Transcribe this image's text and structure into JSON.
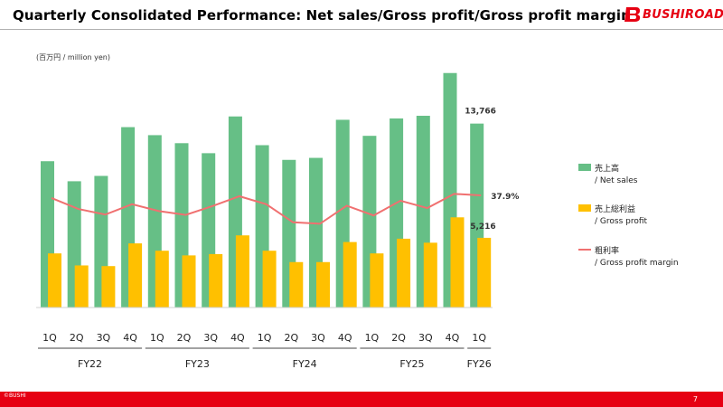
{
  "header": {
    "title": "Quarterly Consolidated Performance: Net sales/Gross profit/Gross profit margin",
    "logo_text": "BUSHIROAD",
    "logo_mark": "B"
  },
  "unit_label": "(百万円 / million yen)",
  "legend": [
    {
      "label_jp": "売上高",
      "label_en": "/ Net sales",
      "color": "#66bf86",
      "kind": "bar"
    },
    {
      "label_jp": "売上総利益",
      "label_en": "/ Gross profit",
      "color": "#ffc000",
      "kind": "bar"
    },
    {
      "label_jp": "粗利率",
      "label_en": "/ Gross profit margin",
      "color": "#f07070",
      "kind": "line"
    }
  ],
  "chart_data": {
    "type": "bar",
    "title": "Quarterly Consolidated Performance: Net sales/Gross profit/Gross profit margin",
    "ylabel": "百万円 / million yen",
    "categories": [
      "1Q",
      "2Q",
      "3Q",
      "4Q",
      "1Q",
      "2Q",
      "3Q",
      "4Q",
      "1Q",
      "2Q",
      "3Q",
      "4Q",
      "1Q",
      "2Q",
      "3Q",
      "4Q",
      "1Q"
    ],
    "fiscal_years": [
      {
        "label": "FY22",
        "start": 0,
        "end": 3
      },
      {
        "label": "FY23",
        "start": 4,
        "end": 7
      },
      {
        "label": "FY24",
        "start": 8,
        "end": 11
      },
      {
        "label": "FY25",
        "start": 12,
        "end": 15
      },
      {
        "label": "FY26",
        "start": 16,
        "end": 16
      }
    ],
    "ylim": [
      0,
      17600
    ],
    "y2lim": [
      0,
      100
    ],
    "series": [
      {
        "name": "Net sales",
        "type": "bar",
        "values": [
          10950,
          9450,
          9850,
          13500,
          12900,
          12300,
          11550,
          14300,
          12150,
          11050,
          11200,
          14050,
          12850,
          14150,
          14350,
          17550,
          13766
        ]
      },
      {
        "name": "Gross profit",
        "type": "bar",
        "values": [
          4050,
          3150,
          3100,
          4800,
          4250,
          3900,
          4000,
          5400,
          4250,
          3400,
          3400,
          4900,
          4050,
          5150,
          4850,
          6750,
          5216
        ]
      },
      {
        "name": "Gross profit margin",
        "type": "line",
        "axis": "secondary",
        "values": [
          37.0,
          33.3,
          31.4,
          34.9,
          32.6,
          31.3,
          34.3,
          37.6,
          34.9,
          28.8,
          28.3,
          34.4,
          31.1,
          36.1,
          33.6,
          38.4,
          37.9
        ]
      }
    ],
    "data_labels": {
      "net_sales": "13,766",
      "gross_profit": "5,216",
      "margin": "37.9%"
    }
  },
  "footer": {
    "copyright": "©BUSHI",
    "page": "7"
  }
}
